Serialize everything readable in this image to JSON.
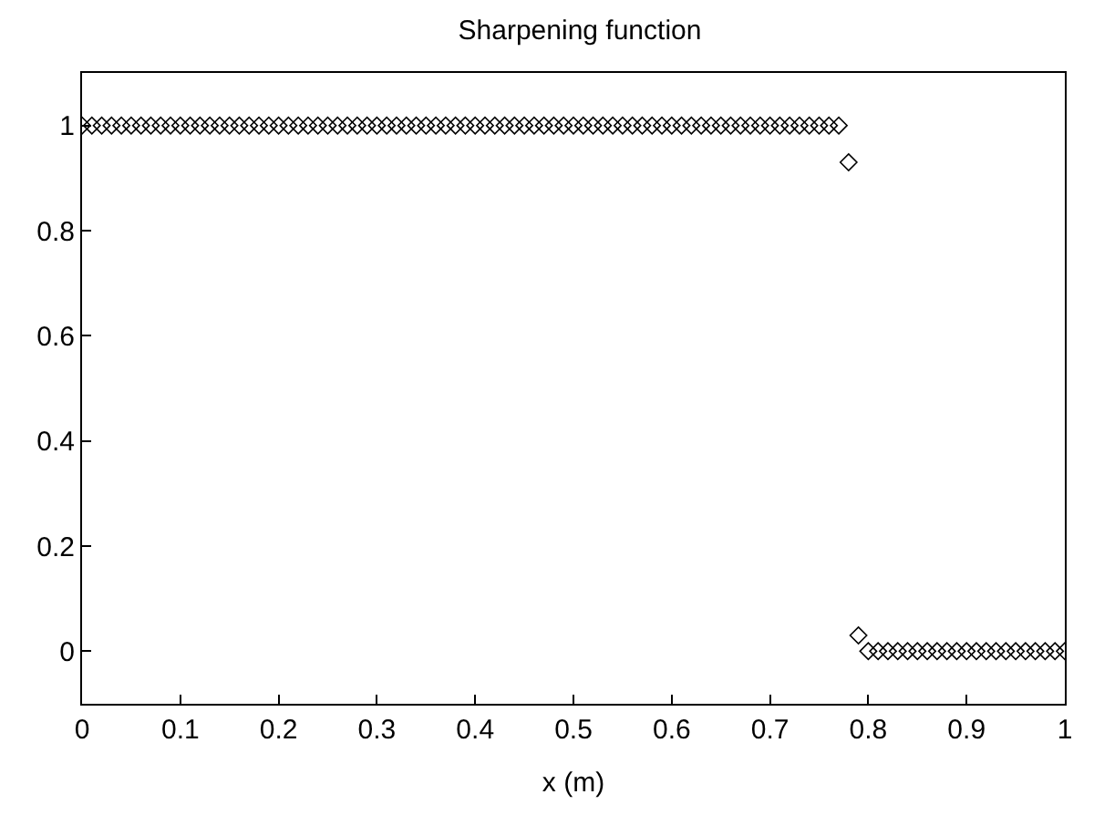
{
  "chart_data": {
    "type": "scatter",
    "title": "Sharpening function",
    "xlabel": "x (m)",
    "marker": "diamond",
    "xlim": [
      0,
      1
    ],
    "ylim": [
      -0.1,
      1.1
    ],
    "xticks": [
      0,
      0.1,
      0.2,
      0.3,
      0.4,
      0.5,
      0.6,
      0.7,
      0.8,
      0.9,
      1
    ],
    "yticks": [
      0,
      0.2,
      0.4,
      0.6,
      0.8,
      1
    ],
    "x": [
      0,
      0.01,
      0.02,
      0.03,
      0.04,
      0.05,
      0.06,
      0.07,
      0.08,
      0.09,
      0.1,
      0.11,
      0.12,
      0.13,
      0.14,
      0.15,
      0.16,
      0.17,
      0.18,
      0.19,
      0.2,
      0.21,
      0.22,
      0.23,
      0.24,
      0.25,
      0.26,
      0.27,
      0.28,
      0.29,
      0.3,
      0.31,
      0.32,
      0.33,
      0.34,
      0.35,
      0.36,
      0.37,
      0.38,
      0.39,
      0.4,
      0.41,
      0.42,
      0.43,
      0.44,
      0.45,
      0.46,
      0.47,
      0.48,
      0.49,
      0.5,
      0.51,
      0.52,
      0.53,
      0.54,
      0.55,
      0.56,
      0.57,
      0.58,
      0.59,
      0.6,
      0.61,
      0.62,
      0.63,
      0.64,
      0.65,
      0.66,
      0.67,
      0.68,
      0.69,
      0.7,
      0.71,
      0.72,
      0.73,
      0.74,
      0.75,
      0.76,
      0.77,
      0.78,
      0.79,
      0.8,
      0.81,
      0.82,
      0.83,
      0.84,
      0.85,
      0.86,
      0.87,
      0.88,
      0.89,
      0.9,
      0.91,
      0.92,
      0.93,
      0.94,
      0.95,
      0.96,
      0.97,
      0.98,
      0.99,
      1
    ],
    "series": [
      {
        "color": "#000000",
        "values": [
          1,
          1,
          1,
          1,
          1,
          1,
          1,
          1,
          1,
          1,
          1,
          1,
          1,
          1,
          1,
          1,
          1,
          1,
          1,
          1,
          1,
          1,
          1,
          1,
          1,
          1,
          1,
          1,
          1,
          1,
          1,
          1,
          1,
          1,
          1,
          1,
          1,
          1,
          1,
          1,
          1,
          1,
          1,
          1,
          1,
          1,
          1,
          1,
          1,
          1,
          1,
          1,
          1,
          1,
          1,
          1,
          1,
          1,
          1,
          1,
          1,
          1,
          1,
          1,
          1,
          1,
          1,
          1,
          1,
          1,
          1,
          1,
          1,
          1,
          1,
          1,
          1,
          1,
          0.93,
          0.03,
          0,
          0,
          0,
          0,
          0,
          0,
          0,
          0,
          0,
          0,
          0,
          0,
          0,
          0,
          0,
          0,
          0,
          0,
          0,
          0,
          0
        ]
      }
    ]
  }
}
